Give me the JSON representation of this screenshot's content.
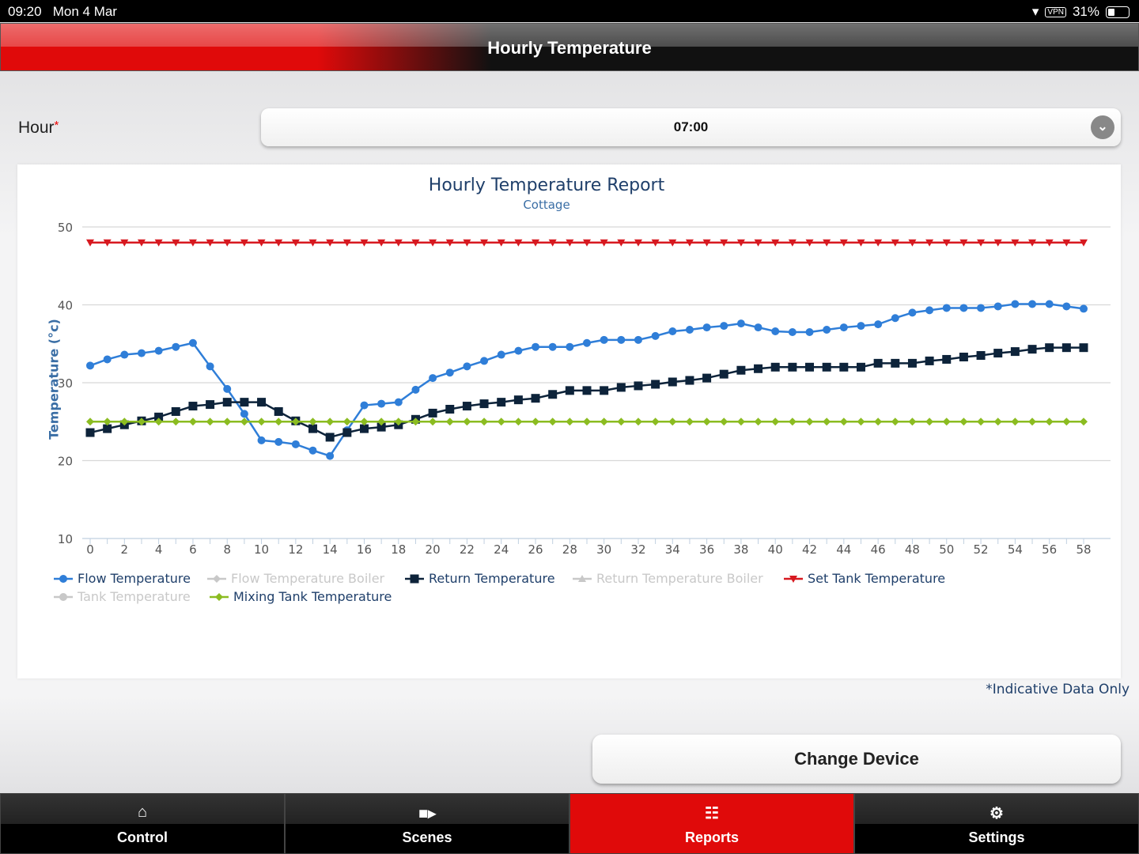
{
  "status_bar": {
    "time": "09:20",
    "date": "Mon 4 Mar",
    "vpn": "VPN",
    "battery": "31%"
  },
  "header": {
    "title": "Hourly Temperature"
  },
  "form": {
    "hour_label": "Hour",
    "required_mark": "*",
    "hour_value": "07:00"
  },
  "note": "*Indicative Data Only",
  "change_device": "Change Device",
  "tabs": [
    {
      "label": "Control",
      "icon": "home-icon"
    },
    {
      "label": "Scenes",
      "icon": "video-camera-icon"
    },
    {
      "label": "Reports",
      "icon": "grid-icon",
      "active": true
    },
    {
      "label": "Settings",
      "icon": "gear-icon"
    }
  ],
  "chart_data": {
    "type": "line",
    "title": "Hourly Temperature Report",
    "subtitle": "Cottage",
    "xlabel": "",
    "ylabel": "Temperature (°c)",
    "ylim": [
      10,
      50
    ],
    "xlim": [
      0,
      58
    ],
    "yticks": [
      10,
      20,
      30,
      40,
      50
    ],
    "xticks": [
      0,
      2,
      4,
      6,
      8,
      10,
      12,
      14,
      16,
      18,
      20,
      22,
      24,
      26,
      28,
      30,
      32,
      34,
      36,
      38,
      40,
      42,
      44,
      46,
      48,
      50,
      52,
      54,
      56,
      58
    ],
    "grid": true,
    "legend_position": "bottom-left",
    "series": [
      {
        "name": "Flow Temperature",
        "color": "#2f7ed8",
        "marker": "circle",
        "visible": true,
        "values": [
          32.2,
          33,
          33.6,
          33.8,
          34.1,
          34.6,
          35.1,
          32.1,
          29.2,
          26,
          22.6,
          22.4,
          22.1,
          21.3,
          20.6,
          23.9,
          27.1,
          27.3,
          27.5,
          29.1,
          30.6,
          31.3,
          32.1,
          32.8,
          33.6,
          34.1,
          34.6,
          34.6,
          34.6,
          35.1,
          35.5,
          35.5,
          35.5,
          36,
          36.6,
          36.8,
          37.1,
          37.3,
          37.6,
          37.1,
          36.6,
          36.5,
          36.5,
          36.8,
          37.1,
          37.3,
          37.5,
          38.3,
          39,
          39.3,
          39.6,
          39.6,
          39.6,
          39.8,
          40.1,
          40.1,
          40.1,
          39.8,
          39.5
        ]
      },
      {
        "name": "Flow Temperature Boiler",
        "color": "#c8c8c8",
        "marker": "diamond",
        "visible": false,
        "values": []
      },
      {
        "name": "Return Temperature",
        "color": "#0d233a",
        "marker": "square",
        "visible": true,
        "values": [
          23.6,
          24.1,
          24.6,
          25.1,
          25.6,
          26.3,
          27,
          27.2,
          27.5,
          27.5,
          27.5,
          26.3,
          25.1,
          24.1,
          23,
          23.6,
          24.1,
          24.3,
          24.6,
          25.3,
          26.1,
          26.6,
          27,
          27.3,
          27.5,
          27.8,
          28,
          28.5,
          29,
          29,
          29,
          29.4,
          29.6,
          29.8,
          30.1,
          30.3,
          30.6,
          31.1,
          31.6,
          31.8,
          32,
          32,
          32,
          32,
          32,
          32,
          32.5,
          32.5,
          32.5,
          32.8,
          33,
          33.3,
          33.5,
          33.8,
          34,
          34.3,
          34.5,
          34.5,
          34.5
        ]
      },
      {
        "name": "Return Temperature Boiler",
        "color": "#c8c8c8",
        "marker": "triangle",
        "visible": false,
        "values": []
      },
      {
        "name": "Set Tank Temperature",
        "color": "#d71920",
        "marker": "triangle-down",
        "visible": true,
        "constant": 48
      },
      {
        "name": "Tank Temperature",
        "color": "#c8c8c8",
        "marker": "circle",
        "visible": false,
        "values": []
      },
      {
        "name": "Mixing Tank Temperature",
        "color": "#8bbc21",
        "marker": "diamond",
        "visible": true,
        "constant": 25
      }
    ]
  }
}
